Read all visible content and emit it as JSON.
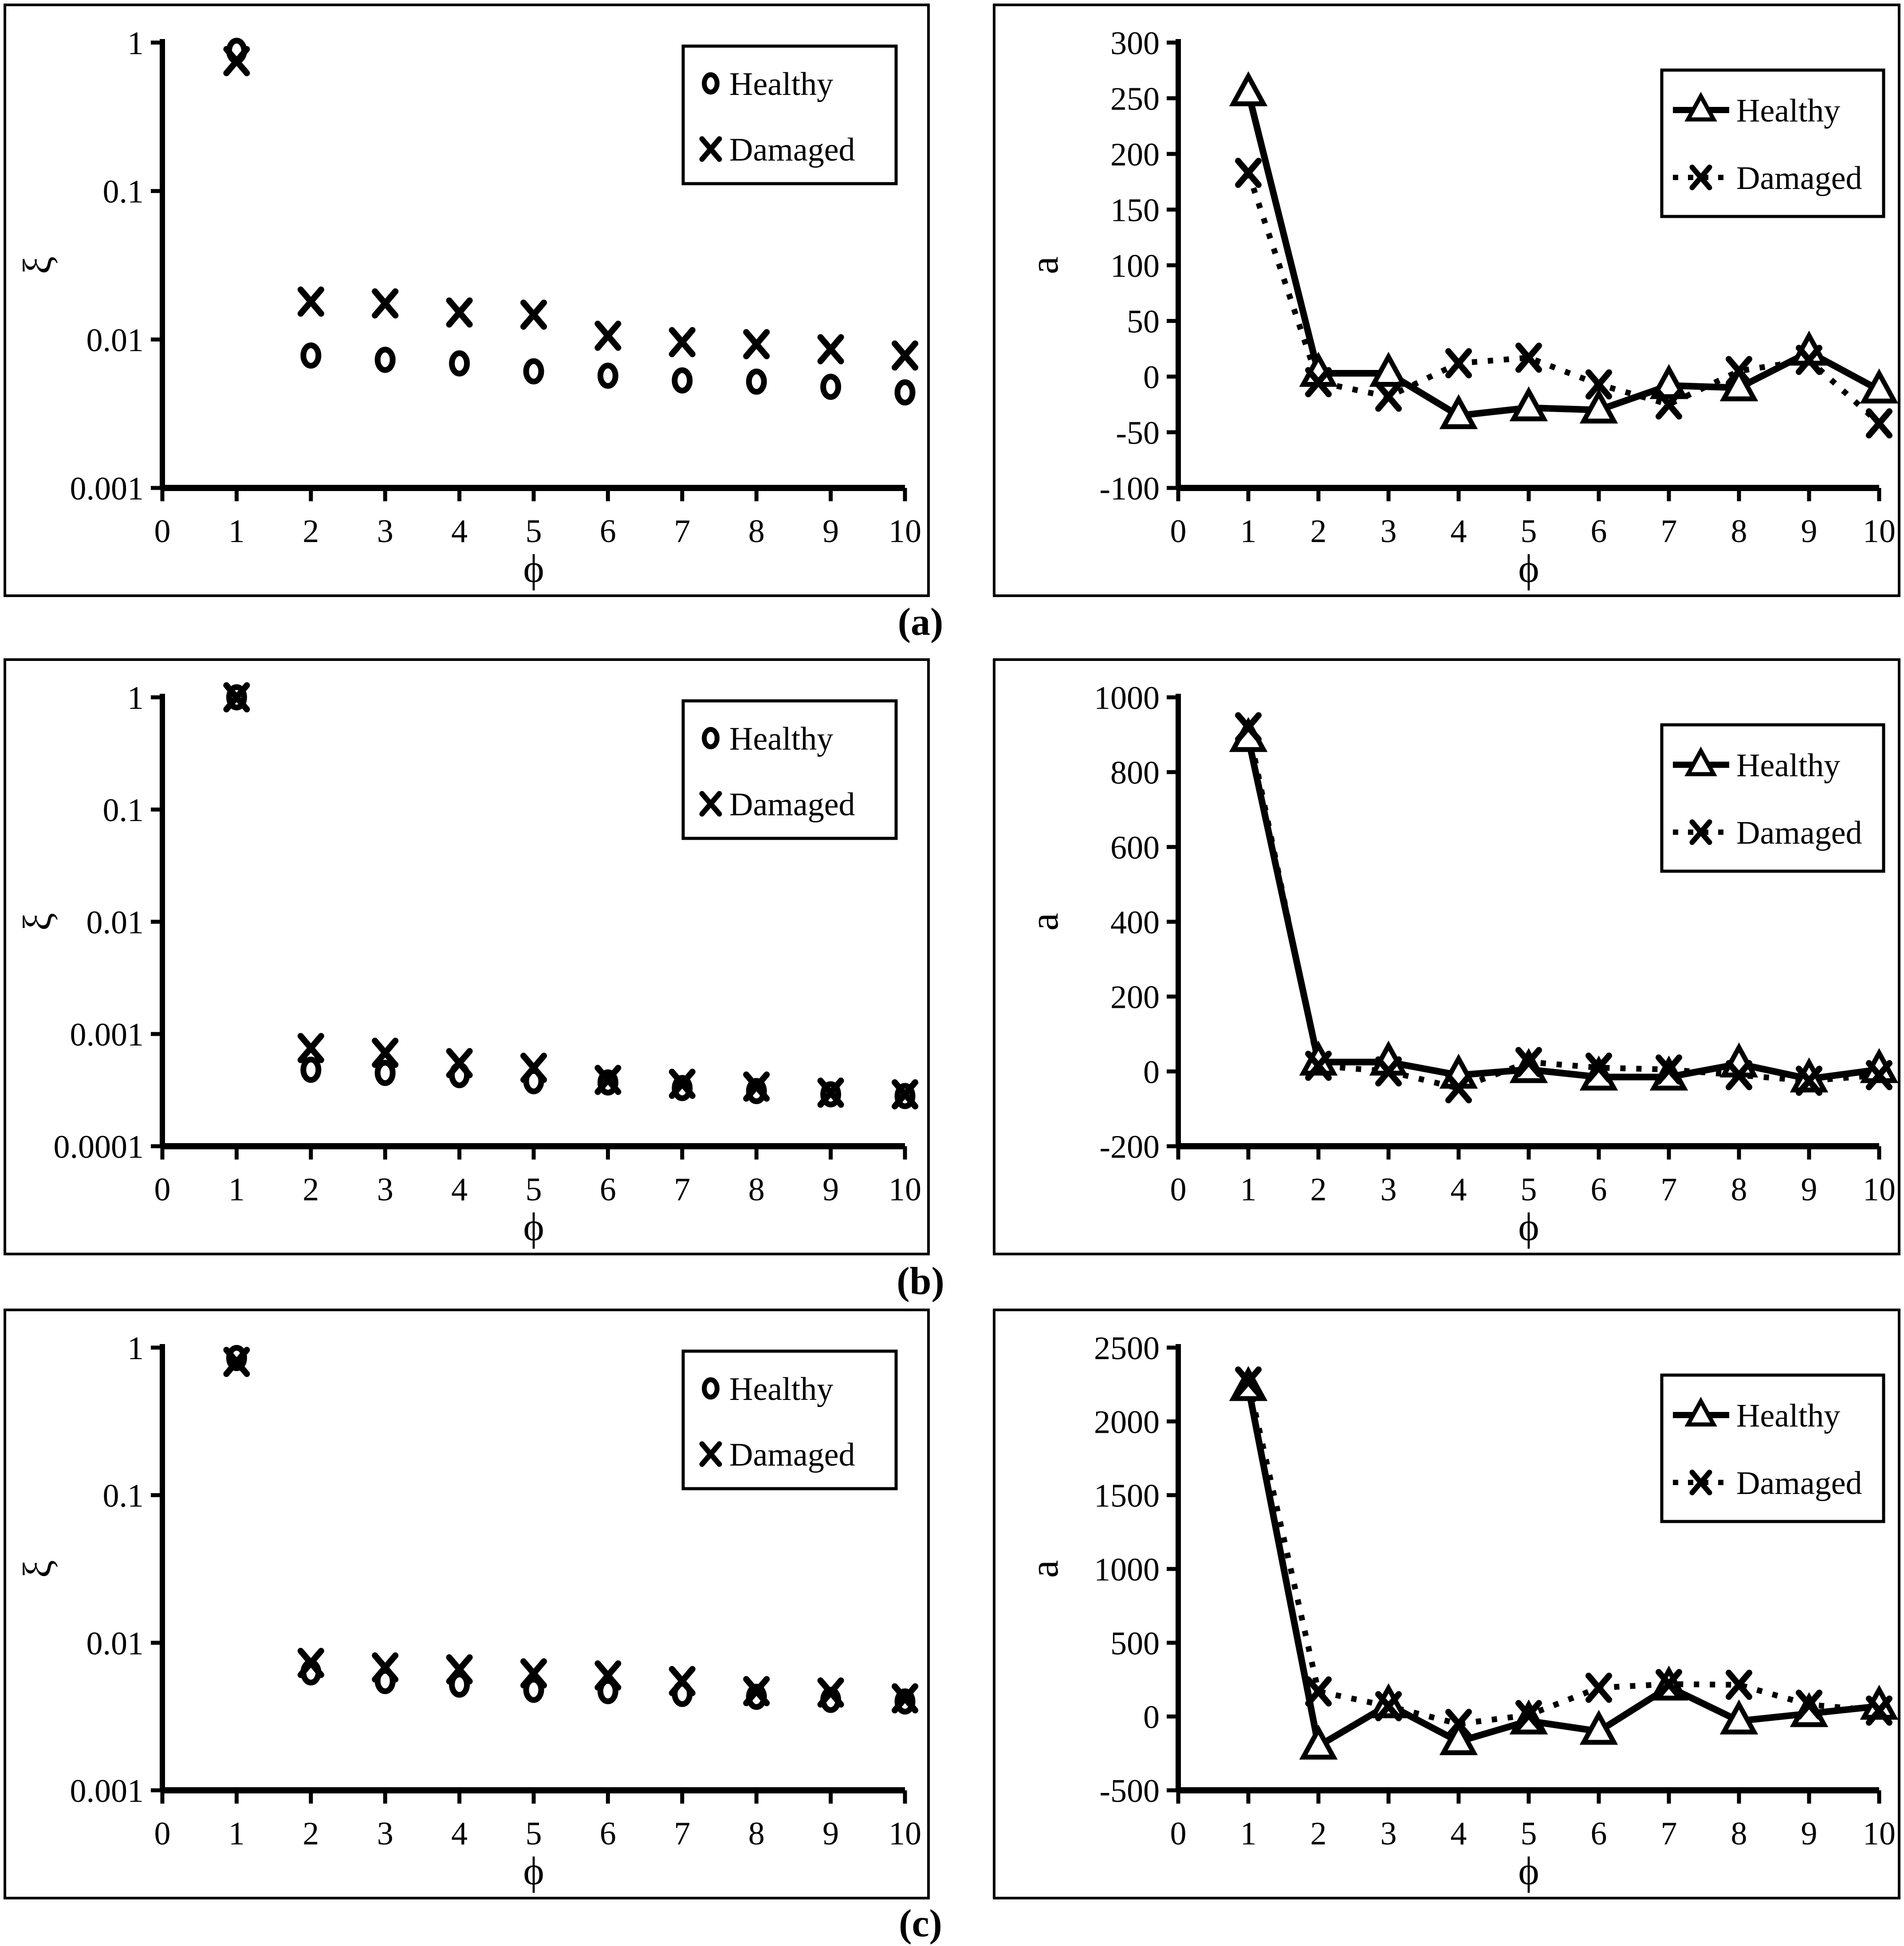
{
  "figure_labels": [
    "(a)",
    "(b)",
    "(c)"
  ],
  "colors": {
    "stroke": "#000000",
    "background": "#ffffff"
  },
  "legend_labels": {
    "healthy": "Healthy",
    "damaged": "Damaged"
  },
  "chart_data": [
    {
      "id": "a-left",
      "panel_label": "a",
      "side": "left",
      "type": "scatter",
      "xlabel": "ϕ",
      "ylabel": "ξ",
      "xlim": [
        0,
        10
      ],
      "xticks": [
        0,
        1,
        2,
        3,
        4,
        5,
        6,
        7,
        8,
        9,
        10
      ],
      "yscale": "log",
      "ylim": [
        0.001,
        1
      ],
      "yticks": [
        1,
        0.1,
        0.01,
        0.001
      ],
      "ytick_labels": [
        "1",
        "0.1",
        "0.01",
        "0.001"
      ],
      "x": [
        1,
        2,
        3,
        4,
        5,
        6,
        7,
        8,
        9,
        10
      ],
      "legend_position": "top-right",
      "series": [
        {
          "name": "Healthy",
          "marker": "circle",
          "line": "none",
          "values": [
            0.88,
            0.0078,
            0.0073,
            0.0069,
            0.0061,
            0.0057,
            0.0053,
            0.0052,
            0.0048,
            0.0044
          ]
        },
        {
          "name": "Damaged",
          "marker": "x",
          "line": "none",
          "values": [
            0.75,
            0.018,
            0.0175,
            0.0152,
            0.0147,
            0.0106,
            0.0096,
            0.0093,
            0.0086,
            0.0078
          ]
        }
      ]
    },
    {
      "id": "a-right",
      "panel_label": "a",
      "side": "right",
      "type": "line",
      "xlabel": "ϕ",
      "ylabel": "a",
      "xlim": [
        0,
        10
      ],
      "xticks": [
        0,
        1,
        2,
        3,
        4,
        5,
        6,
        7,
        8,
        9,
        10
      ],
      "yscale": "linear",
      "ylim": [
        -100,
        300
      ],
      "yticks": [
        300,
        250,
        200,
        150,
        100,
        50,
        0,
        -50,
        -100
      ],
      "ytick_labels": [
        "300",
        "250",
        "200",
        "150",
        "100",
        "50",
        "0",
        "-50",
        "-100"
      ],
      "x": [
        1,
        2,
        3,
        4,
        5,
        6,
        7,
        8,
        9,
        10
      ],
      "legend_position": "top-right",
      "series": [
        {
          "name": "Healthy",
          "marker": "triangle",
          "line": "solid",
          "values": [
            255,
            3,
            3,
            -35,
            -28,
            -30,
            -8,
            -10,
            22,
            -12
          ]
        },
        {
          "name": "Damaged",
          "marker": "x",
          "line": "dotted",
          "values": [
            183,
            -5,
            -18,
            12,
            17,
            -7,
            -25,
            5,
            15,
            -42
          ]
        }
      ]
    },
    {
      "id": "b-left",
      "panel_label": "b",
      "side": "left",
      "type": "scatter",
      "xlabel": "ϕ",
      "ylabel": "ξ",
      "xlim": [
        0,
        10
      ],
      "xticks": [
        0,
        1,
        2,
        3,
        4,
        5,
        6,
        7,
        8,
        9,
        10
      ],
      "yscale": "log",
      "ylim": [
        0.0001,
        1
      ],
      "yticks": [
        1,
        0.1,
        0.01,
        0.001,
        0.0001
      ],
      "ytick_labels": [
        "1",
        "0.1",
        "0.01",
        "0.001",
        "0.0001"
      ],
      "x": [
        1,
        2,
        3,
        4,
        5,
        6,
        7,
        8,
        9,
        10
      ],
      "legend_position": "top-right",
      "series": [
        {
          "name": "Healthy",
          "marker": "circle",
          "line": "none",
          "values": [
            1.0,
            0.00048,
            0.00045,
            0.00043,
            0.00038,
            0.00037,
            0.00033,
            0.00031,
            0.00029,
            0.00028
          ]
        },
        {
          "name": "Damaged",
          "marker": "x",
          "line": "none",
          "values": [
            1.0,
            0.00075,
            0.00068,
            0.00055,
            0.0005,
            0.00039,
            0.00036,
            0.00034,
            0.0003,
            0.00029
          ]
        }
      ]
    },
    {
      "id": "b-right",
      "panel_label": "b",
      "side": "right",
      "type": "line",
      "xlabel": "ϕ",
      "ylabel": "a",
      "xlim": [
        0,
        10
      ],
      "xticks": [
        0,
        1,
        2,
        3,
        4,
        5,
        6,
        7,
        8,
        9,
        10
      ],
      "yscale": "linear",
      "ylim": [
        -200,
        1000
      ],
      "yticks": [
        1000,
        800,
        600,
        400,
        200,
        0,
        -200
      ],
      "ytick_labels": [
        "1000",
        "800",
        "600",
        "400",
        "200",
        "0",
        "-200"
      ],
      "x": [
        1,
        2,
        3,
        4,
        5,
        6,
        7,
        8,
        9,
        10
      ],
      "legend_position": "top-right",
      "series": [
        {
          "name": "Healthy",
          "marker": "triangle",
          "line": "solid",
          "values": [
            890,
            25,
            25,
            -10,
            5,
            -15,
            -15,
            20,
            -20,
            5
          ]
        },
        {
          "name": "Damaged",
          "marker": "x",
          "line": "dotted",
          "values": [
            920,
            15,
            0,
            -45,
            25,
            10,
            5,
            -10,
            -25,
            -10
          ]
        }
      ]
    },
    {
      "id": "c-left",
      "panel_label": "c",
      "side": "left",
      "type": "scatter",
      "xlabel": "ϕ",
      "ylabel": "ξ",
      "xlim": [
        0,
        10
      ],
      "xticks": [
        0,
        1,
        2,
        3,
        4,
        5,
        6,
        7,
        8,
        9,
        10
      ],
      "yscale": "log",
      "ylim": [
        0.001,
        1
      ],
      "yticks": [
        1,
        0.1,
        0.01,
        0.001
      ],
      "ytick_labels": [
        "1",
        "0.1",
        "0.01",
        "0.001"
      ],
      "x": [
        1,
        2,
        3,
        4,
        5,
        6,
        7,
        8,
        9,
        10
      ],
      "legend_position": "top-right",
      "series": [
        {
          "name": "Healthy",
          "marker": "circle",
          "line": "none",
          "values": [
            0.85,
            0.0063,
            0.0055,
            0.0052,
            0.0048,
            0.0047,
            0.0045,
            0.0043,
            0.0041,
            0.004
          ]
        },
        {
          "name": "Damaged",
          "marker": "x",
          "line": "none",
          "values": [
            0.8,
            0.0073,
            0.0068,
            0.0066,
            0.0062,
            0.006,
            0.0055,
            0.0047,
            0.0046,
            0.0042
          ]
        }
      ]
    },
    {
      "id": "c-right",
      "panel_label": "c",
      "side": "right",
      "type": "line",
      "xlabel": "ϕ",
      "ylabel": "a",
      "xlim": [
        0,
        10
      ],
      "xticks": [
        0,
        1,
        2,
        3,
        4,
        5,
        6,
        7,
        8,
        9,
        10
      ],
      "yscale": "linear",
      "ylim": [
        -500,
        2500
      ],
      "yticks": [
        2500,
        2000,
        1500,
        1000,
        500,
        0,
        -500
      ],
      "ytick_labels": [
        "2500",
        "2000",
        "1500",
        "1000",
        "500",
        "0",
        "-500"
      ],
      "x": [
        1,
        2,
        3,
        4,
        5,
        6,
        7,
        8,
        9,
        10
      ],
      "legend_position": "top-right",
      "series": [
        {
          "name": "Healthy",
          "marker": "triangle",
          "line": "solid",
          "values": [
            2230,
            -200,
            80,
            -170,
            -30,
            -100,
            200,
            -30,
            20,
            70
          ]
        },
        {
          "name": "Damaged",
          "marker": "x",
          "line": "dotted",
          "values": [
            2270,
            170,
            70,
            -50,
            10,
            195,
            220,
            215,
            80,
            40
          ]
        }
      ]
    }
  ]
}
